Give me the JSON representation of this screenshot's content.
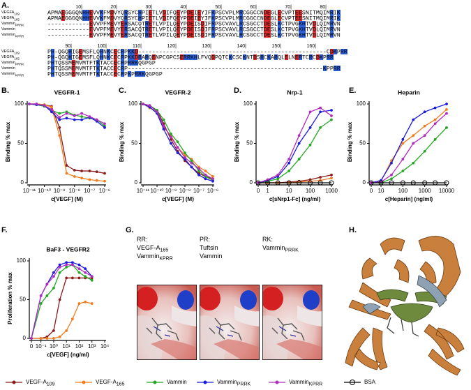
{
  "panel_labels": [
    "A.",
    "B.",
    "C.",
    "D.",
    "E.",
    "F.",
    "G.",
    "H."
  ],
  "alignment": {
    "blocks": [
      {
        "positions": [
          "10|",
          "20|",
          "30|",
          "40|",
          "50|",
          "60|",
          "70|",
          "80|"
        ],
        "rows": [
          {
            "name": "VEGFA",
            "sub": "109",
            "seq": "APMAEGGGQNHHEVVKFMDVYQRSYCHPIETLVDIFQEYPDEIEYIFKPSCVPLMRCGGCCNDEGLECVPTEESNITMQIMRIK"
          },
          {
            "name": "VEGFA",
            "sub": "165",
            "seq": "APMAEGGGQNHHEVVKFMDVYQRSYCHPIETLVDIFQEYPDEIEYIFKPSCVPLMRCGGCCNDEGLECVPTEESNITMQIMRIK"
          },
          {
            "name": "Vammin",
            "sub": "PRRK",
            "seq": "------------EVVPFMEVYERSACQTRETLVPILQEYPDEISDIFRPSCVAVLRCSGCCTDESLKCTPVGKHTVDLQIMRVN"
          },
          {
            "name": "Vammin",
            "seq": "------------EVVPFMEVYERSACQTRETLVPILQEYPDEISDIFRPSCVAVLRCSGCCTDESLKCTPVGKHTVDLQIMRVN"
          },
          {
            "name": "Vammin",
            "sub": "KPRR",
            "seq": "------------EVVPFMEVYERSACQTRETLVPILQEYPDEISDIFRPSCVAVLRCSGCCTDESLKCTPVGKHTVDLQIMRVN"
          }
        ]
      },
      {
        "positions": [
          "90|",
          "100|",
          "110|",
          "120|",
          "130|",
          "140|",
          "150|",
          "160|"
        ],
        "rows": [
          {
            "name": "VEGFA",
            "sub": "109",
            "seq": "PH-QGQHIGEMSFLQHNKCECRPKKD------------------------------------------------------CDKPRR"
          },
          {
            "name": "VEGFA",
            "sub": "165",
            "seq": "PH-QGQHIGEMSFLQHNKCECRPKKDRARQENPCGPCSERRKHLFVQDPQTCKCSCKNTDSRCKARQLELNERTCRCDKPRR"
          },
          {
            "name": "Vammin",
            "sub": "PRRK",
            "seq": "PHTQSSMEMVMTFTKTACCECRPRRKQGPGP"
          },
          {
            "name": "Vammin",
            "seq": "PHTQSSMEMVMTFTKTACCECRP--------------------------------------------------------KPPRR"
          },
          {
            "name": "Vammin",
            "sub": "KPRR",
            "seq": "PHTQSSMEMVMTFTKTACCECRPKPRRKQGPGP"
          }
        ]
      }
    ]
  },
  "chart_data": [
    {
      "type": "line",
      "title": "VEGFR-1",
      "xlabel": "c[VEGF] (M)",
      "ylabel": "Binding % max",
      "xscale": "log",
      "x": [
        1e-11,
        3e-11,
        1e-10,
        3e-10,
        1e-09,
        3e-09,
        1e-08,
        3e-08,
        1e-07,
        3e-07,
        1e-06
      ],
      "xlim": [
        1e-11,
        1e-06
      ],
      "xticks": [
        {
          "value": 1e-11,
          "label": "10⁻¹¹"
        },
        {
          "value": 1e-10,
          "label": "10⁻¹⁰"
        },
        {
          "value": 1e-09,
          "label": "10⁻⁹"
        },
        {
          "value": 1e-08,
          "label": "10⁻⁸"
        },
        {
          "value": 1e-07,
          "label": "10⁻⁷"
        },
        {
          "value": 1e-06,
          "label": "10⁻⁶"
        }
      ],
      "ylim": [
        0,
        100
      ],
      "yticks": [
        0,
        50,
        100
      ],
      "series": [
        {
          "color": "#8b1a1a",
          "values": [
            100,
            100,
            99,
            97,
            70,
            22,
            16,
            15,
            15,
            14,
            12
          ]
        },
        {
          "color": "#f07c1e",
          "values": [
            100,
            100,
            99,
            96,
            60,
            12,
            8,
            6,
            4,
            3,
            2
          ]
        },
        {
          "color": "#22a822",
          "values": [
            100,
            99,
            97,
            92,
            88,
            90,
            86,
            84,
            82,
            80,
            72
          ]
        },
        {
          "color": "#1a1adb",
          "values": [
            100,
            99,
            98,
            90,
            80,
            82,
            80,
            80,
            83,
            78,
            70
          ]
        },
        {
          "color": "#b02cc0",
          "values": [
            100,
            100,
            98,
            93,
            83,
            88,
            85,
            88,
            84,
            80,
            75
          ]
        },
        null
      ]
    },
    {
      "type": "line",
      "title": "VEGFR-2",
      "xlabel": "c[VEGF] (M)",
      "ylabel": "Binding % max",
      "xscale": "log",
      "x": [
        1e-11,
        3e-11,
        1e-10,
        3e-10,
        1e-09,
        3e-09,
        1e-08,
        3e-08,
        1e-07,
        3e-07,
        1e-06
      ],
      "xlim": [
        1e-11,
        1e-06
      ],
      "xticks": [
        {
          "value": 1e-11,
          "label": "10⁻¹¹"
        },
        {
          "value": 1e-10,
          "label": "10⁻¹⁰"
        },
        {
          "value": 1e-09,
          "label": "10⁻⁹"
        },
        {
          "value": 1e-08,
          "label": "10⁻⁸"
        },
        {
          "value": 1e-07,
          "label": "10⁻⁷"
        },
        {
          "value": 1e-06,
          "label": "10⁻⁶"
        }
      ],
      "ylim": [
        0,
        100
      ],
      "yticks": [
        0,
        50,
        100
      ],
      "series": [
        {
          "color": "#8b1a1a",
          "values": [
            100,
            98,
            92,
            75,
            55,
            40,
            28,
            20,
            12,
            8,
            5
          ]
        },
        {
          "color": "#f07c1e",
          "values": [
            100,
            95,
            90,
            70,
            60,
            45,
            35,
            30,
            20,
            15,
            8
          ]
        },
        {
          "color": "#22a822",
          "values": [
            100,
            98,
            92,
            80,
            62,
            52,
            38,
            28,
            15,
            8,
            3
          ]
        },
        {
          "color": "#1a1adb",
          "values": [
            100,
            96,
            88,
            68,
            50,
            38,
            30,
            20,
            10,
            5,
            2
          ]
        },
        {
          "color": "#b02cc0",
          "values": [
            100,
            98,
            90,
            72,
            58,
            45,
            32,
            25,
            18,
            10,
            5
          ]
        },
        null
      ]
    },
    {
      "type": "line",
      "title": "Nrp-1",
      "xlabel": "c[sNrp1-Fc] (ng/ml)",
      "ylabel": "Binding % max",
      "xscale": "log",
      "x": [
        0,
        1,
        3,
        10,
        30,
        100,
        300,
        1000
      ],
      "xlim": [
        0,
        1000
      ],
      "xticks": [
        0,
        1,
        10,
        100,
        1000
      ],
      "ylim": [
        0,
        100
      ],
      "yticks": [
        0,
        50,
        100
      ],
      "series": [
        {
          "color": "#8b1a1a",
          "values": [
            0,
            0,
            0,
            1,
            2,
            4,
            7,
            10
          ]
        },
        {
          "color": "#f07c1e",
          "values": [
            0,
            0,
            0,
            0,
            1,
            2,
            3,
            6
          ]
        },
        {
          "color": "#22a822",
          "values": [
            0,
            2,
            5,
            15,
            30,
            48,
            70,
            80
          ]
        },
        {
          "color": "#1a1adb",
          "values": [
            0,
            3,
            8,
            25,
            50,
            70,
            90,
            92
          ]
        },
        {
          "color": "#b02cc0",
          "values": [
            0,
            4,
            10,
            30,
            60,
            90,
            95,
            85
          ]
        },
        {
          "color": "#000000",
          "marker": "open-circle",
          "values": [
            0,
            0,
            0,
            0,
            0,
            0,
            0,
            0
          ]
        }
      ]
    },
    {
      "type": "line",
      "title": "Heparin",
      "xlabel": "c[Heparin] (ng/ml)",
      "ylabel": "Binding % max",
      "xscale": "log",
      "x": [
        0,
        10,
        30,
        100,
        300,
        1000,
        3000,
        10000
      ],
      "xlim": [
        0,
        10000
      ],
      "xticks": [
        0,
        10,
        100,
        1000,
        10000
      ],
      "ylim": [
        0,
        100
      ],
      "yticks": [
        0,
        50,
        100
      ],
      "series": [
        null,
        {
          "color": "#f07c1e",
          "values": [
            0,
            2,
            28,
            50,
            60,
            72,
            80,
            93
          ]
        },
        {
          "color": "#22a822",
          "values": [
            0,
            0,
            5,
            15,
            25,
            40,
            55,
            70
          ]
        },
        {
          "color": "#1a1adb",
          "values": [
            0,
            3,
            25,
            55,
            80,
            90,
            95,
            100
          ]
        },
        {
          "color": "#b02cc0",
          "values": [
            0,
            1,
            10,
            30,
            50,
            60,
            75,
            88
          ]
        },
        {
          "color": "#000000",
          "marker": "open-circle",
          "values": [
            0,
            0,
            0,
            0,
            0,
            0,
            0,
            0
          ]
        }
      ]
    },
    {
      "type": "line",
      "title": "BaF3 - VEGFR2",
      "xlabel": "c[VEGF] (ng/ml)",
      "ylabel": "Proliferation % max",
      "xscale": "log",
      "x": [
        0,
        0.1,
        0.3,
        1,
        3,
        10,
        30,
        100,
        300,
        1000
      ],
      "xlim": [
        0,
        10000
      ],
      "xticks": [
        0,
        {
          "value": 0.1,
          "label": "10⁻¹"
        },
        {
          "value": 1,
          "label": "10⁰"
        },
        {
          "value": 10,
          "label": "10¹"
        },
        {
          "value": 100,
          "label": "10²"
        },
        {
          "value": 1000,
          "label": "10³"
        },
        {
          "value": 10000,
          "label": "10⁴"
        }
      ],
      "ylim": [
        0,
        100
      ],
      "yticks": [
        0,
        50,
        100
      ],
      "series": [
        {
          "color": "#8b1a1a",
          "values": [
            0,
            0,
            2,
            10,
            50,
            78,
            78,
            78,
            78,
            78
          ]
        },
        {
          "color": "#f07c1e",
          "values": [
            0,
            0,
            0,
            0,
            2,
            10,
            25,
            45,
            47,
            45
          ]
        },
        {
          "color": "#22a822",
          "values": [
            0,
            45,
            55,
            65,
            85,
            92,
            95,
            85,
            80,
            75
          ]
        },
        {
          "color": "#1a1adb",
          "values": [
            0,
            55,
            70,
            85,
            95,
            98,
            98,
            95,
            90,
            80
          ]
        },
        {
          "color": "#b02cc0",
          "values": [
            0,
            55,
            70,
            80,
            92,
            95,
            95,
            90,
            85,
            80
          ]
        },
        null
      ]
    }
  ],
  "legend": [
    {
      "name": "VEGF-A",
      "sub": "109",
      "color": "#8b1a1a"
    },
    {
      "name": "VEGF-A",
      "sub": "165",
      "color": "#f07c1e"
    },
    {
      "name": "Vammin",
      "color": "#22a822"
    },
    {
      "name": "Vammin",
      "sub": "PRRK",
      "color": "#1a1adb"
    },
    {
      "name": "Vammin",
      "sub": "KPRR",
      "color": "#b02cc0"
    },
    {
      "name": "BSA",
      "color": "#000000",
      "marker": "open-circle"
    }
  ],
  "panel_g": [
    [
      {
        "text": "RR:"
      },
      {
        "text": "VEGF-A",
        "sub": "165"
      },
      {
        "text": "Vammin",
        "sub": "KPRR"
      }
    ],
    [
      {
        "text": "PR:"
      },
      {
        "text": "Tuftsin"
      },
      {
        "text": "Vammin"
      }
    ],
    [
      {
        "text": "RK:"
      },
      {
        "text": "Vammin",
        "sub": "PRRK"
      }
    ]
  ]
}
